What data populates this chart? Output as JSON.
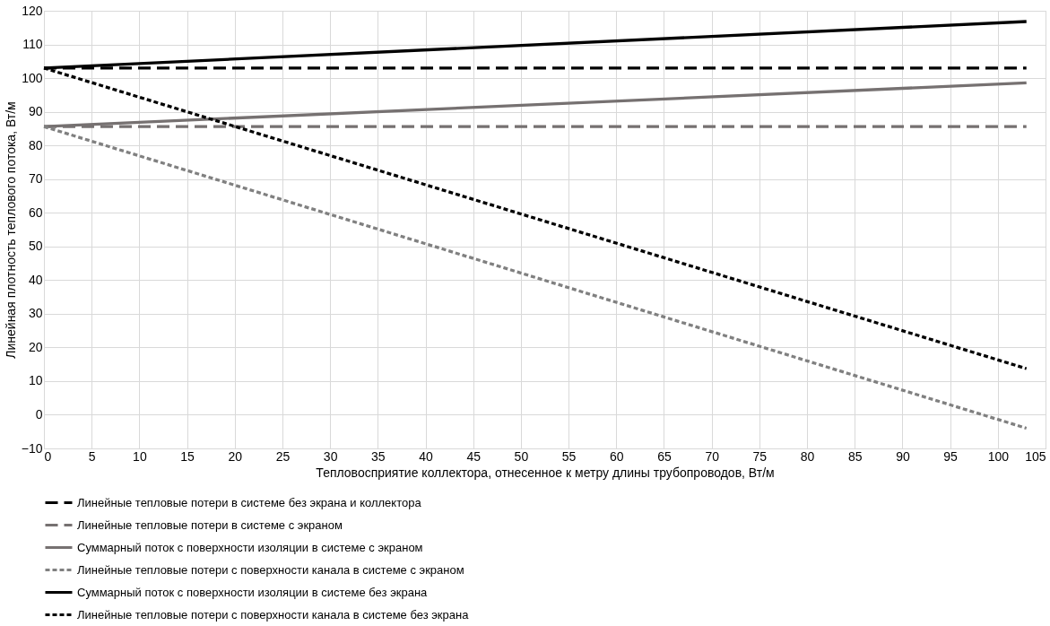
{
  "chart_data": {
    "type": "line",
    "xlabel": "Тепловосприятие коллектора, отнесенное к метру длины трубопроводов, Вт/м",
    "ylabel": "Линейная плотность теплового потока, Вт/м",
    "x": [
      0,
      103
    ],
    "series": [
      {
        "name": "Линейные тепловые потери в системе без экрана и коллектора",
        "color": "#000000",
        "line_style": "dashed",
        "values": [
          103,
          103
        ]
      },
      {
        "name": "Линейные тепловые потери в системе с экраном",
        "color": "#767171",
        "line_style": "dashed",
        "values": [
          85.6,
          85.6
        ]
      },
      {
        "name": "Суммарный поток с поверхности изоляции в системе с экраном",
        "color": "#767171",
        "line_style": "solid",
        "values": [
          85.6,
          98.6
        ]
      },
      {
        "name": "Линейные тепловые потери с поверхности канала в системе с экраном",
        "color": "#808080",
        "line_style": "dotted",
        "values": [
          85.6,
          -4
        ]
      },
      {
        "name": "Суммарный поток с поверхности изоляции в системе без экрана",
        "color": "#000000",
        "line_style": "solid",
        "values": [
          103,
          116.8
        ]
      },
      {
        "name": "Линейные тепловые потери с поверхности канала в системе без экрана",
        "color": "#000000",
        "line_style": "dotted",
        "values": [
          103,
          13.7
        ]
      }
    ],
    "xlim": [
      0,
      105
    ],
    "xticks": [
      0,
      5,
      10,
      15,
      20,
      25,
      30,
      35,
      40,
      45,
      50,
      55,
      60,
      65,
      70,
      75,
      80,
      85,
      90,
      95,
      100,
      105
    ],
    "ylim": [
      -10,
      120
    ],
    "yticks": [
      -10,
      0,
      10,
      20,
      30,
      40,
      50,
      60,
      70,
      80,
      90,
      100,
      110,
      120
    ],
    "grid": true,
    "legend": "bottom",
    "marker": "none"
  }
}
